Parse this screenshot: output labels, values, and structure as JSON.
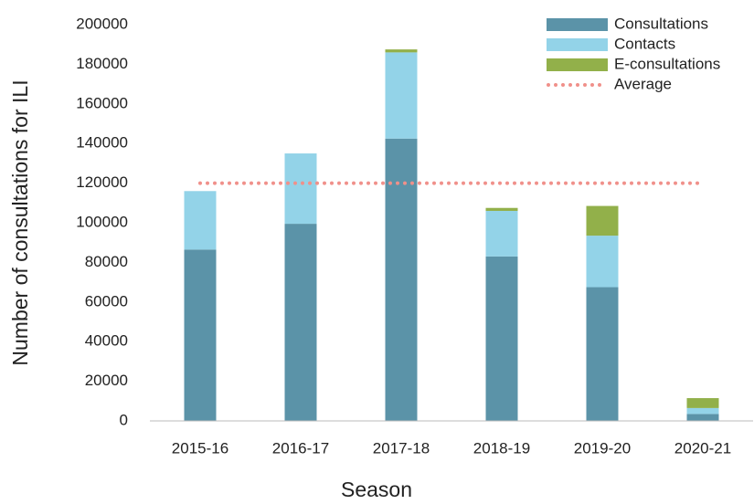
{
  "chart_data": {
    "type": "bar",
    "stacked": true,
    "x_label": "Season",
    "y_label": "Number of consultations for ILI",
    "categories": [
      "2015-16",
      "2016-17",
      "2017-18",
      "2018-19",
      "2019-20",
      "2020-21"
    ],
    "series": [
      {
        "name": "Consultations",
        "color": "#5b93a8",
        "values": [
          86500,
          99500,
          142500,
          83000,
          67500,
          3500
        ]
      },
      {
        "name": "Contacts",
        "color": "#93d3e8",
        "values": [
          29500,
          35500,
          43500,
          23000,
          26000,
          3000
        ]
      },
      {
        "name": "E-consultations",
        "color": "#92b04a",
        "values": [
          0,
          0,
          1500,
          1500,
          15000,
          5000
        ]
      },
      {
        "name": "Average",
        "color": "#f0908a",
        "type": "line",
        "line_style": "dotted",
        "values": [
          120000,
          120000,
          120000,
          120000,
          120000,
          120000
        ]
      }
    ],
    "ylim": [
      0,
      200000
    ],
    "yticks": [
      0,
      20000,
      40000,
      60000,
      80000,
      100000,
      120000,
      140000,
      160000,
      180000,
      200000
    ],
    "grid": false,
    "legend": "top-right"
  }
}
